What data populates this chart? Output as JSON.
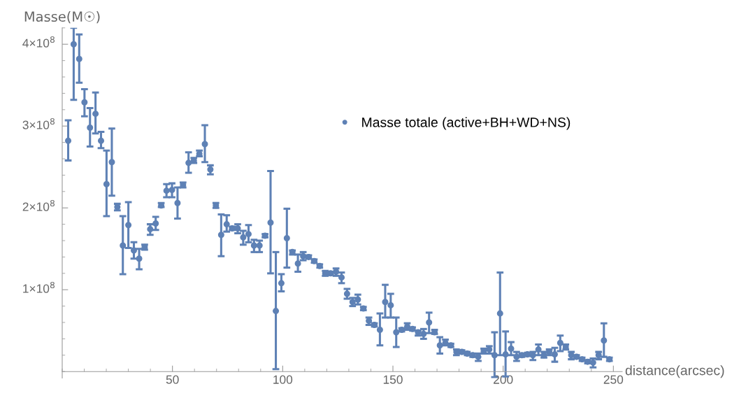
{
  "chart_data": {
    "type": "scatter",
    "xlabel": "distance(arcsec)",
    "ylabel": "Masse(M☉)",
    "xlim": [
      0,
      254
    ],
    "ylim": [
      -8000000,
      420000000
    ],
    "xticks": [
      50,
      100,
      150,
      200,
      250
    ],
    "yticks": [
      {
        "value": 100000000,
        "label": "1×10$^{8}$"
      },
      {
        "value": 200000000,
        "label": "2×10$^{8}$"
      },
      {
        "value": 300000000,
        "label": "3×10$^{8}$"
      },
      {
        "value": 400000000,
        "label": "4×10$^{8}$"
      }
    ],
    "legend": "top right",
    "grid": false,
    "marker": "circle",
    "series": [
      {
        "name": "Masse totale (active+BH+WD+NS)",
        "color": "#5e81b5",
        "x": [
          2.7,
          5.2,
          7.7,
          10.1,
          12.6,
          15.1,
          17.6,
          20.1,
          22.5,
          25.0,
          27.5,
          30.0,
          32.5,
          34.9,
          37.4,
          39.9,
          42.4,
          44.9,
          47.3,
          49.8,
          52.3,
          54.8,
          57.3,
          59.7,
          62.2,
          64.7,
          67.2,
          69.7,
          72.1,
          74.6,
          77.1,
          79.6,
          82.1,
          84.5,
          87.0,
          89.5,
          92.0,
          94.5,
          96.9,
          99.4,
          101.9,
          104.4,
          106.9,
          109.3,
          111.8,
          114.3,
          116.8,
          119.3,
          121.7,
          124.2,
          126.7,
          129.2,
          131.7,
          134.1,
          136.6,
          139.1,
          141.6,
          144.1,
          146.5,
          149.0,
          151.5,
          154.0,
          156.5,
          158.9,
          161.4,
          163.9,
          166.4,
          168.9,
          171.3,
          173.8,
          176.3,
          178.8,
          181.3,
          183.7,
          186.2,
          188.7,
          191.2,
          193.7,
          196.1,
          198.6,
          201.1,
          203.6,
          206.1,
          208.5,
          211.0,
          213.5,
          216.0,
          218.5,
          220.9,
          223.4,
          225.9,
          228.4,
          230.9,
          233.3,
          235.8,
          238.3,
          240.8,
          243.3,
          245.7,
          248.2
        ],
        "values": [
          282000000.0,
          400000000.0,
          382000000.0,
          329000000.0,
          298000000.0,
          315000000.0,
          282000000.0,
          229000000.0,
          256000000.0,
          201000000.0,
          154000000.0,
          179000000.0,
          148000000.0,
          138000000.0,
          152000000.0,
          174000000.0,
          181000000.0,
          203000000.0,
          221000000.0,
          222000000.0,
          206000000.0,
          228000000.0,
          255000000.0,
          258000000.0,
          266000000.0,
          278000000.0,
          247000000.0,
          203000000.0,
          167000000.0,
          180000000.0,
          175000000.0,
          175000000.0,
          164000000.0,
          168000000.0,
          154000000.0,
          154000000.0,
          166000000.0,
          182000000.0,
          74000000.0,
          108000000.0,
          163000000.0,
          146000000.0,
          132000000.0,
          141000000.0,
          140000000.0,
          135000000.0,
          129000000.0,
          120000000.0,
          120000000.0,
          122000000.0,
          115000000.0,
          95000000.0,
          85000000.0,
          88000000.0,
          77000000.0,
          62000000.0,
          57000000.0,
          51000000.0,
          85000000.0,
          81000000.0,
          48000000.0,
          51000000.0,
          55000000.0,
          52000000.0,
          48000000.0,
          46000000.0,
          60000000.0,
          48000000.0,
          32000000.0,
          35000000.0,
          32000000.0,
          24000000.0,
          24000000.0,
          22000000.0,
          20000000.0,
          18000000.0,
          25000000.0,
          27000000.0,
          20000000.0,
          71000000.0,
          21000000.0,
          28000000.0,
          18000000.0,
          20000000.0,
          21000000.0,
          20000000.0,
          27000000.0,
          20000000.0,
          24000000.0,
          21000000.0,
          35000000.0,
          30000000.0,
          20000000.0,
          18000000.0,
          15000000.0,
          12000000.0,
          11000000.0,
          20000000.0,
          38000000.0,
          15000000.0
        ],
        "errors": [
          [
            258000000.0,
            307000000.0
          ],
          [
            332000000.0,
            420000000.0
          ],
          [
            353000000.0,
            412000000.0
          ],
          [
            312000000.0,
            345000000.0
          ],
          [
            275000000.0,
            322000000.0
          ],
          [
            291000000.0,
            341000000.0
          ],
          [
            273000000.0,
            293000000.0
          ],
          [
            190000000.0,
            270000000.0
          ],
          [
            215000000.0,
            297000000.0
          ],
          [
            197000000.0,
            205000000.0
          ],
          [
            119000000.0,
            190000000.0
          ],
          [
            151000000.0,
            207000000.0
          ],
          [
            138000000.0,
            158000000.0
          ],
          [
            125000000.0,
            150000000.0
          ],
          [
            149000000.0,
            155000000.0
          ],
          [
            167000000.0,
            180000000.0
          ],
          [
            173000000.0,
            189000000.0
          ],
          [
            201000000.0,
            206000000.0
          ],
          [
            213000000.0,
            229000000.0
          ],
          [
            213000000.0,
            230000000.0
          ],
          [
            187000000.0,
            225000000.0
          ],
          [
            225000000.0,
            231000000.0
          ],
          [
            243000000.0,
            268000000.0
          ],
          [
            255000000.0,
            261000000.0
          ],
          [
            263000000.0,
            270000000.0
          ],
          [
            256000000.0,
            301000000.0
          ],
          [
            241000000.0,
            252000000.0
          ],
          [
            200000000.0,
            206000000.0
          ],
          [
            141000000.0,
            192000000.0
          ],
          [
            171000000.0,
            191000000.0
          ],
          [
            173000000.0,
            177000000.0
          ],
          [
            169000000.0,
            180000000.0
          ],
          [
            155000000.0,
            172000000.0
          ],
          [
            158000000.0,
            179000000.0
          ],
          [
            146000000.0,
            161000000.0
          ],
          [
            146000000.0,
            160000000.0
          ],
          [
            164000000.0,
            168000000.0
          ],
          [
            120000000.0,
            245000000.0
          ],
          [
            3000000.0,
            146000000.0
          ],
          [
            98000000.0,
            119000000.0
          ],
          [
            127000000.0,
            199000000.0
          ],
          [
            143000000.0,
            148000000.0
          ],
          [
            122000000.0,
            143000000.0
          ],
          [
            136000000.0,
            146000000.0
          ],
          [
            138000000.0,
            142000000.0
          ],
          [
            133000000.0,
            137000000.0
          ],
          [
            127000000.0,
            131000000.0
          ],
          [
            117000000.0,
            123000000.0
          ],
          [
            118000000.0,
            122000000.0
          ],
          [
            117000000.0,
            126000000.0
          ],
          [
            108000000.0,
            121000000.0
          ],
          [
            89000000.0,
            101000000.0
          ],
          [
            80000000.0,
            90000000.0
          ],
          [
            82000000.0,
            94000000.0
          ],
          [
            75000000.0,
            79000000.0
          ],
          [
            57000000.0,
            66000000.0
          ],
          [
            55000000.0,
            59000000.0
          ],
          [
            32000000.0,
            71000000.0
          ],
          [
            66000000.0,
            106000000.0
          ],
          [
            66000000.0,
            95000000.0
          ],
          [
            30000000.0,
            66000000.0
          ],
          [
            49000000.0,
            53000000.0
          ],
          [
            51000000.0,
            59000000.0
          ],
          [
            50000000.0,
            54000000.0
          ],
          [
            44000000.0,
            50000000.0
          ],
          [
            40000000.0,
            52000000.0
          ],
          [
            47000000.0,
            72000000.0
          ],
          [
            46000000.0,
            51000000.0
          ],
          [
            22000000.0,
            42000000.0
          ],
          [
            32000000.0,
            39000000.0
          ],
          [
            30000000.0,
            34000000.0
          ],
          [
            20000000.0,
            27000000.0
          ],
          [
            22000000.0,
            26000000.0
          ],
          [
            20000000.0,
            24000000.0
          ],
          [
            18000000.0,
            22000000.0
          ],
          [
            13000000.0,
            22000000.0
          ],
          [
            22000000.0,
            28000000.0
          ],
          [
            22000000.0,
            31000000.0
          ],
          [
            -7000000.0,
            48000000.0
          ],
          [
            20000000.0,
            121000000.0
          ],
          [
            -6000000.0,
            49000000.0
          ],
          [
            20000000.0,
            36000000.0
          ],
          [
            13000000.0,
            24000000.0
          ],
          [
            18000000.0,
            22000000.0
          ],
          [
            19000000.0,
            23000000.0
          ],
          [
            14000000.0,
            24000000.0
          ],
          [
            20000000.0,
            33000000.0
          ],
          [
            17000000.0,
            24000000.0
          ],
          [
            20000000.0,
            27000000.0
          ],
          [
            12000000.0,
            29000000.0
          ],
          [
            25000000.0,
            44000000.0
          ],
          [
            27000000.0,
            33000000.0
          ],
          [
            15000000.0,
            24000000.0
          ],
          [
            16000000.0,
            20000000.0
          ],
          [
            13000000.0,
            17000000.0
          ],
          [
            10000000.0,
            14000000.0
          ],
          [
            5000000.0,
            16000000.0
          ],
          [
            15000000.0,
            24000000.0
          ],
          [
            18000000.0,
            59000000.0
          ],
          [
            13000000.0,
            17000000.0
          ]
        ]
      }
    ]
  }
}
